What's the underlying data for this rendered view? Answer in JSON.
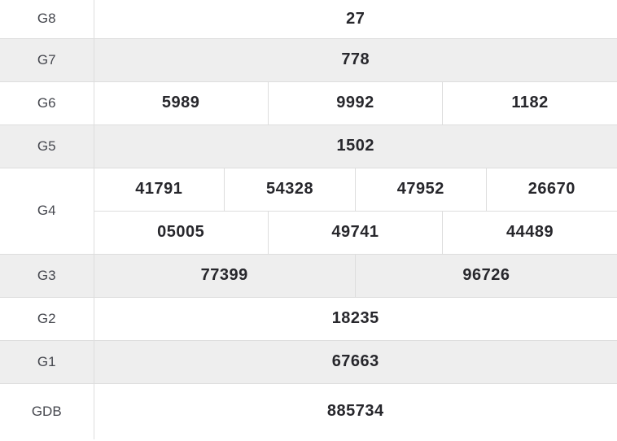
{
  "colors": {
    "highlight_red": "#ff0000",
    "value_text": "#27272c",
    "label_text": "#45474e",
    "alt_row_bg": "#eeeeee",
    "grid_border": "#dddddd",
    "row_bg": "#ffffff"
  },
  "table": {
    "grid_columns": 12,
    "rows": [
      {
        "label": "G8",
        "red": true,
        "alt": false,
        "first": true,
        "cells": [
          {
            "value": "27",
            "span": 12
          }
        ]
      },
      {
        "label": "G7",
        "red": false,
        "alt": true,
        "cells": [
          {
            "value": "778",
            "span": 12
          }
        ]
      },
      {
        "label": "G6",
        "red": false,
        "alt": false,
        "cells": [
          {
            "value": "5989",
            "span": 4
          },
          {
            "value": "9992",
            "span": 4
          },
          {
            "value": "1182",
            "span": 4
          }
        ]
      },
      {
        "label": "G5",
        "red": false,
        "alt": true,
        "cells": [
          {
            "value": "1502",
            "span": 12
          }
        ]
      },
      {
        "label": "G4",
        "red": false,
        "alt": false,
        "rowspan": 2,
        "cells": [
          {
            "value": "41791",
            "span": 3
          },
          {
            "value": "54328",
            "span": 3
          },
          {
            "value": "47952",
            "span": 3
          },
          {
            "value": "26670",
            "span": 3
          }
        ]
      },
      {
        "label": null,
        "red": false,
        "alt": false,
        "cells": [
          {
            "value": "05005",
            "span": 4
          },
          {
            "value": "49741",
            "span": 4
          },
          {
            "value": "44489",
            "span": 4
          }
        ]
      },
      {
        "label": "G3",
        "red": false,
        "alt": true,
        "cells": [
          {
            "value": "77399",
            "span": 6
          },
          {
            "value": "96726",
            "span": 6
          }
        ]
      },
      {
        "label": "G2",
        "red": false,
        "alt": false,
        "cells": [
          {
            "value": "18235",
            "span": 12
          }
        ]
      },
      {
        "label": "G1",
        "red": false,
        "alt": true,
        "cells": [
          {
            "value": "67663",
            "span": 12
          }
        ]
      },
      {
        "label": "GDB",
        "red": true,
        "alt": false,
        "tall": true,
        "cells": [
          {
            "value": "885734",
            "span": 12
          }
        ]
      }
    ]
  }
}
